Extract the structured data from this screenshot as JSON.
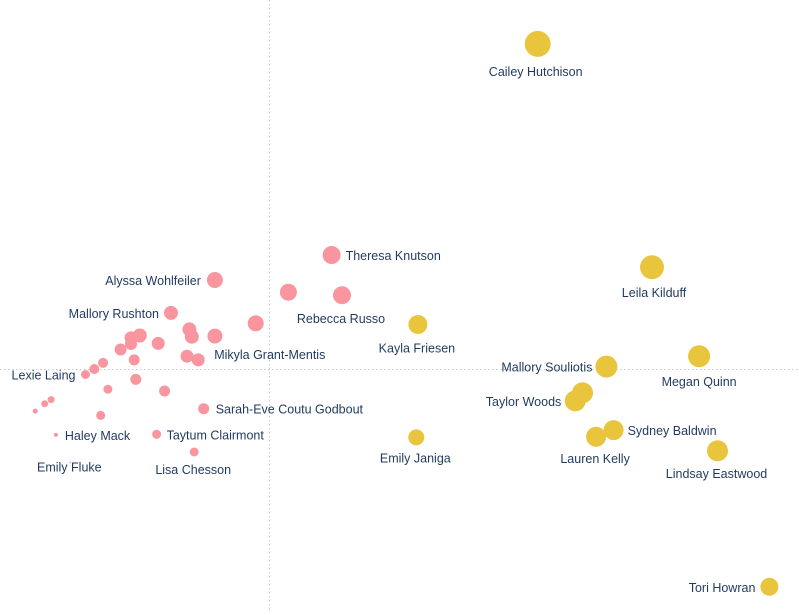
{
  "chart_data": {
    "type": "scatter",
    "title": "",
    "xlabel": "",
    "ylabel": "",
    "grid": false,
    "reference_lines": {
      "vertical_dotted": true,
      "horizontal_dotted": true
    },
    "xlim": [
      0,
      100
    ],
    "ylim": [
      0,
      100
    ],
    "colors": {
      "pink": "#f9959f",
      "gold": "#e8c53d"
    },
    "series": [
      {
        "color_key": "pink",
        "points": [
          {
            "x": 26.9,
            "y": 54.1,
            "size": 8,
            "label": "Alyssa Wohlfeiler"
          },
          {
            "x": 41.5,
            "y": 58.2,
            "size": 9,
            "label": "Theresa Knutson"
          },
          {
            "x": 42.8,
            "y": 51.6,
            "size": 9,
            "label": "Rebecca Russo"
          },
          {
            "x": 36.1,
            "y": 52.1,
            "size": 8.5,
            "label": ""
          },
          {
            "x": 32.0,
            "y": 47.0,
            "size": 8,
            "label": ""
          },
          {
            "x": 21.4,
            "y": 48.7,
            "size": 7,
            "label": "Mallory Rushton"
          },
          {
            "x": 23.7,
            "y": 46.0,
            "size": 7,
            "label": ""
          },
          {
            "x": 24.0,
            "y": 44.8,
            "size": 7,
            "label": ""
          },
          {
            "x": 26.9,
            "y": 44.9,
            "size": 7.5,
            "label": ""
          },
          {
            "x": 17.5,
            "y": 45.0,
            "size": 7,
            "label": ""
          },
          {
            "x": 16.4,
            "y": 44.6,
            "size": 6.5,
            "label": ""
          },
          {
            "x": 16.4,
            "y": 43.6,
            "size": 6,
            "label": ""
          },
          {
            "x": 19.8,
            "y": 43.7,
            "size": 6.5,
            "label": ""
          },
          {
            "x": 15.1,
            "y": 42.7,
            "size": 6,
            "label": ""
          },
          {
            "x": 16.8,
            "y": 41.0,
            "size": 5.5,
            "label": ""
          },
          {
            "x": 23.4,
            "y": 41.6,
            "size": 6.5,
            "label": ""
          },
          {
            "x": 24.8,
            "y": 41.0,
            "size": 6.5,
            "label": "Mikyla Grant-Mentis"
          },
          {
            "x": 12.9,
            "y": 40.5,
            "size": 5,
            "label": ""
          },
          {
            "x": 11.8,
            "y": 39.5,
            "size": 5,
            "label": ""
          },
          {
            "x": 10.7,
            "y": 38.6,
            "size": 4.5,
            "label": "Lexie Laing"
          },
          {
            "x": 17.0,
            "y": 37.8,
            "size": 5.5,
            "label": ""
          },
          {
            "x": 13.5,
            "y": 36.2,
            "size": 4.5,
            "label": ""
          },
          {
            "x": 20.6,
            "y": 35.9,
            "size": 5.5,
            "label": ""
          },
          {
            "x": 6.4,
            "y": 34.5,
            "size": 3.5,
            "label": ""
          },
          {
            "x": 5.6,
            "y": 33.8,
            "size": 3.5,
            "label": ""
          },
          {
            "x": 25.5,
            "y": 33.0,
            "size": 5.5,
            "label": "Sarah-Eve Coutu Godbout"
          },
          {
            "x": 4.4,
            "y": 32.6,
            "size": 2.5,
            "label": ""
          },
          {
            "x": 12.6,
            "y": 31.9,
            "size": 4.5,
            "label": ""
          },
          {
            "x": 7.0,
            "y": 28.7,
            "size": 2,
            "label": "Haley Mack"
          },
          {
            "x": 19.6,
            "y": 28.8,
            "size": 4.5,
            "label": "Taytum Clairmont"
          },
          {
            "x": 24.3,
            "y": 25.9,
            "size": 4.5,
            "label": "Lisa Chesson"
          },
          {
            "x": 8.8,
            "y": 24.2,
            "size": 0.8,
            "label": "Emily Fluke"
          }
        ]
      },
      {
        "color_key": "gold",
        "points": [
          {
            "x": 67.3,
            "y": 92.8,
            "size": 13,
            "label": "Cailey Hutchison"
          },
          {
            "x": 81.6,
            "y": 56.2,
            "size": 12,
            "label": "Leila Kilduff"
          },
          {
            "x": 52.3,
            "y": 46.8,
            "size": 9.5,
            "label": "Kayla Friesen"
          },
          {
            "x": 87.5,
            "y": 41.6,
            "size": 11,
            "label": "Megan Quinn"
          },
          {
            "x": 75.9,
            "y": 39.9,
            "size": 11,
            "label": "Mallory Souliotis"
          },
          {
            "x": 72.9,
            "y": 35.6,
            "size": 10.5,
            "label": ""
          },
          {
            "x": 72.0,
            "y": 34.3,
            "size": 10.5,
            "label": "Taylor Woods"
          },
          {
            "x": 76.8,
            "y": 29.5,
            "size": 10,
            "label": "Sydney Baldwin"
          },
          {
            "x": 74.6,
            "y": 28.4,
            "size": 10,
            "label": "Lauren Kelly"
          },
          {
            "x": 52.1,
            "y": 28.3,
            "size": 8,
            "label": "Emily Janiga"
          },
          {
            "x": 89.8,
            "y": 26.1,
            "size": 10.5,
            "label": "Lindsay Eastwood"
          },
          {
            "x": 96.3,
            "y": 3.8,
            "size": 9,
            "label": "Tori Howran"
          }
        ]
      }
    ]
  }
}
